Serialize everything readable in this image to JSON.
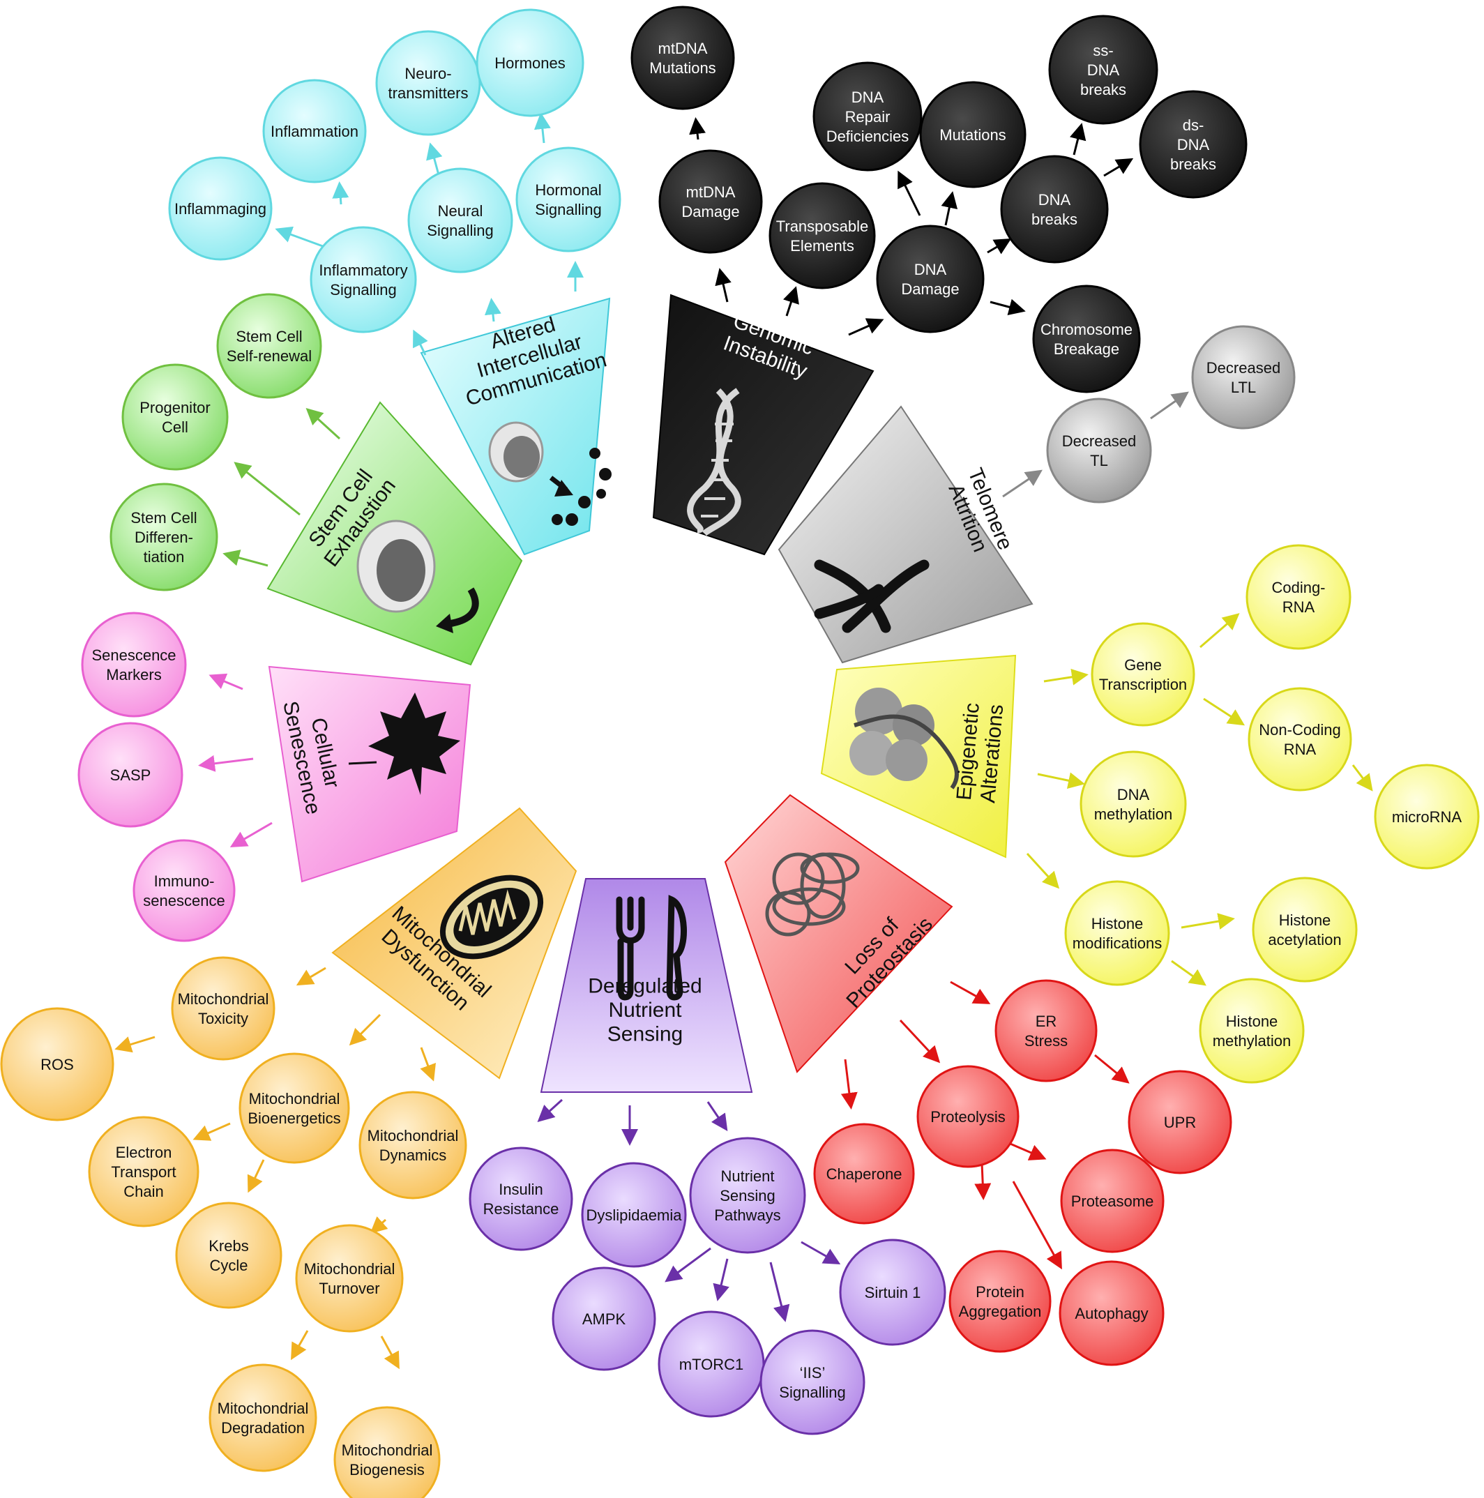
{
  "hallmarks": {
    "genomic": {
      "label": "Genomic\nInstability",
      "color": "#222222"
    },
    "telomere": {
      "label": "Telomere\nAttrition",
      "color": "#aaaaaa"
    },
    "epigenetic": {
      "label": "Epigenetic\nAlterations",
      "color": "#eeee2a"
    },
    "proteostasis": {
      "label": "Loss of\nProteostasis",
      "color": "#ef2b2b"
    },
    "nutrient": {
      "label": "Deregulated\nNutrient\nSensing",
      "color": "#9a6ad6"
    },
    "mito": {
      "label": "Mitochondrial\nDysfunction",
      "color": "#f3bb3a"
    },
    "senescence": {
      "label": "Cellular\nSenescence",
      "color": "#f07ad9"
    },
    "stemcell": {
      "label": "Stem Cell\nExhaustion",
      "color": "#7ed957"
    },
    "intercellular": {
      "label": "Altered\nIntercellular\nCommunication",
      "color": "#7fe8ef"
    }
  },
  "nodes": {
    "mtdna_mutations": "mtDNA\nMutations",
    "mtdna_damage": "mtDNA\nDamage",
    "transposable": "Transposable\nElements",
    "dna_repair": "DNA\nRepair\nDeficiencies",
    "mutations": "Mutations",
    "ss_dna": "ss-\nDNA\nbreaks",
    "ds_dna": "ds-\nDNA\nbreaks",
    "dna_breaks": "DNA\nbreaks",
    "dna_damage": "DNA\nDamage",
    "chromosome": "Chromosome\nBreakage",
    "decreased_ltl": "Decreased\nLTL",
    "decreased_tl": "Decreased\nTL",
    "coding_rna": "Coding-\nRNA",
    "gene_transcription": "Gene\nTranscription",
    "noncoding_rna": "Non-Coding\nRNA",
    "dna_methylation": "DNA\nmethylation",
    "microrna": "microRNA",
    "histone_mod": "Histone\nmodifications",
    "histone_acet": "Histone\nacetylation",
    "histone_meth": "Histone\nmethylation",
    "er_stress": "ER\nStress",
    "upr": "UPR",
    "proteolysis": "Proteolysis",
    "chaperone": "Chaperone",
    "proteasome": "Proteasome",
    "protein_agg": "Protein\nAggregation",
    "autophagy": "Autophagy",
    "insulin": "Insulin\nResistance",
    "dyslipid": "Dyslipidaemia",
    "nsp": "Nutrient\nSensing\nPathways",
    "ampk": "AMPK",
    "mtorc1": "mTORC1",
    "iis": "‘IIS’\nSignalling",
    "sirtuin": "Sirtuin 1",
    "mito_tox": "Mitochondrial\nToxicity",
    "ros": "ROS",
    "mito_bio": "Mitochondrial\nBioenergetics",
    "mito_dyn": "Mitochondrial\nDynamics",
    "etc": "Electron\nTransport\nChain",
    "krebs": "Krebs\nCycle",
    "mito_turn": "Mitochondrial\nTurnover",
    "mito_deg": "Mitochondrial\nDegradation",
    "mito_biogen": "Mitochondrial\nBiogenesis",
    "sen_markers": "Senescence\nMarkers",
    "sasp": "SASP",
    "immunosen": "Immuno-\nsenescence",
    "stem_diff": "Stem Cell\nDifferen-\ntiation",
    "progenitor": "Progenitor\nCell",
    "stem_renew": "Stem Cell\nSelf-renewal",
    "inflammaging": "Inflammaging",
    "inflammation": "Inflammation",
    "infl_signal": "Inflammatory\nSignalling",
    "neuro": "Neuro-\ntransmitters",
    "neural_signal": "Neural\nSignalling",
    "hormones": "Hormones",
    "hormonal_signal": "Hormonal\nSignalling"
  }
}
